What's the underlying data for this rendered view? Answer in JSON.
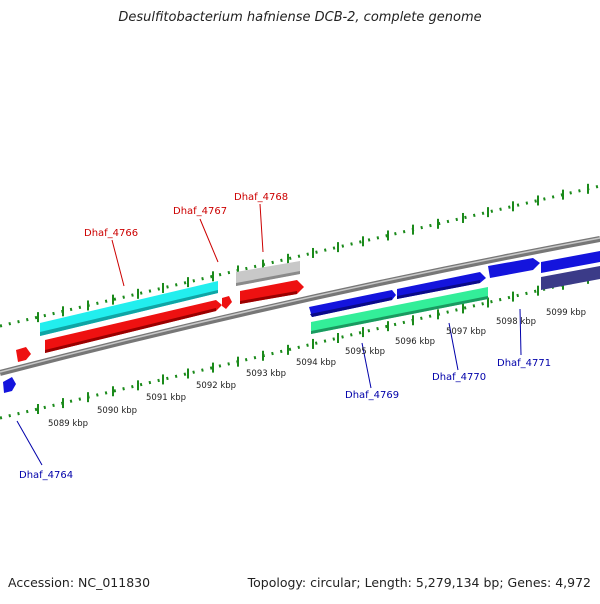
{
  "title": "Desulfitobacterium hafniense DCB-2, complete genome",
  "footer": {
    "accession": "Accession: NC_011830",
    "summary": "Topology: circular; Length: 5,279,134 bp; Genes: 4,972"
  },
  "colors": {
    "tick_green": "#1a8a1a",
    "backbone_gray": "#8c8c8c",
    "red_label": "#cc0000",
    "blue_label": "#0000aa",
    "gene_red": "#ee1111",
    "gene_cyan": "#22eeee",
    "gene_gray": "#c8c8c8",
    "gene_blue": "#1414dd",
    "gene_teal": "#33ee99",
    "gene_navy": "#3b3b88"
  },
  "ticks": [
    "5089 kbp",
    "5090 kbp",
    "5091 kbp",
    "5092 kbp",
    "5093 kbp",
    "5094 kbp",
    "5095 kbp",
    "5096 kbp",
    "5097 kbp",
    "5098 kbp",
    "5099 kbp"
  ],
  "labels": {
    "dhaf_4764": "Dhaf_4764",
    "dhaf_4766": "Dhaf_4766",
    "dhaf_4767": "Dhaf_4767",
    "dhaf_4768": "Dhaf_4768",
    "dhaf_4769": "Dhaf_4769",
    "dhaf_4770": "Dhaf_4770",
    "dhaf_4771": "Dhaf_4771"
  }
}
